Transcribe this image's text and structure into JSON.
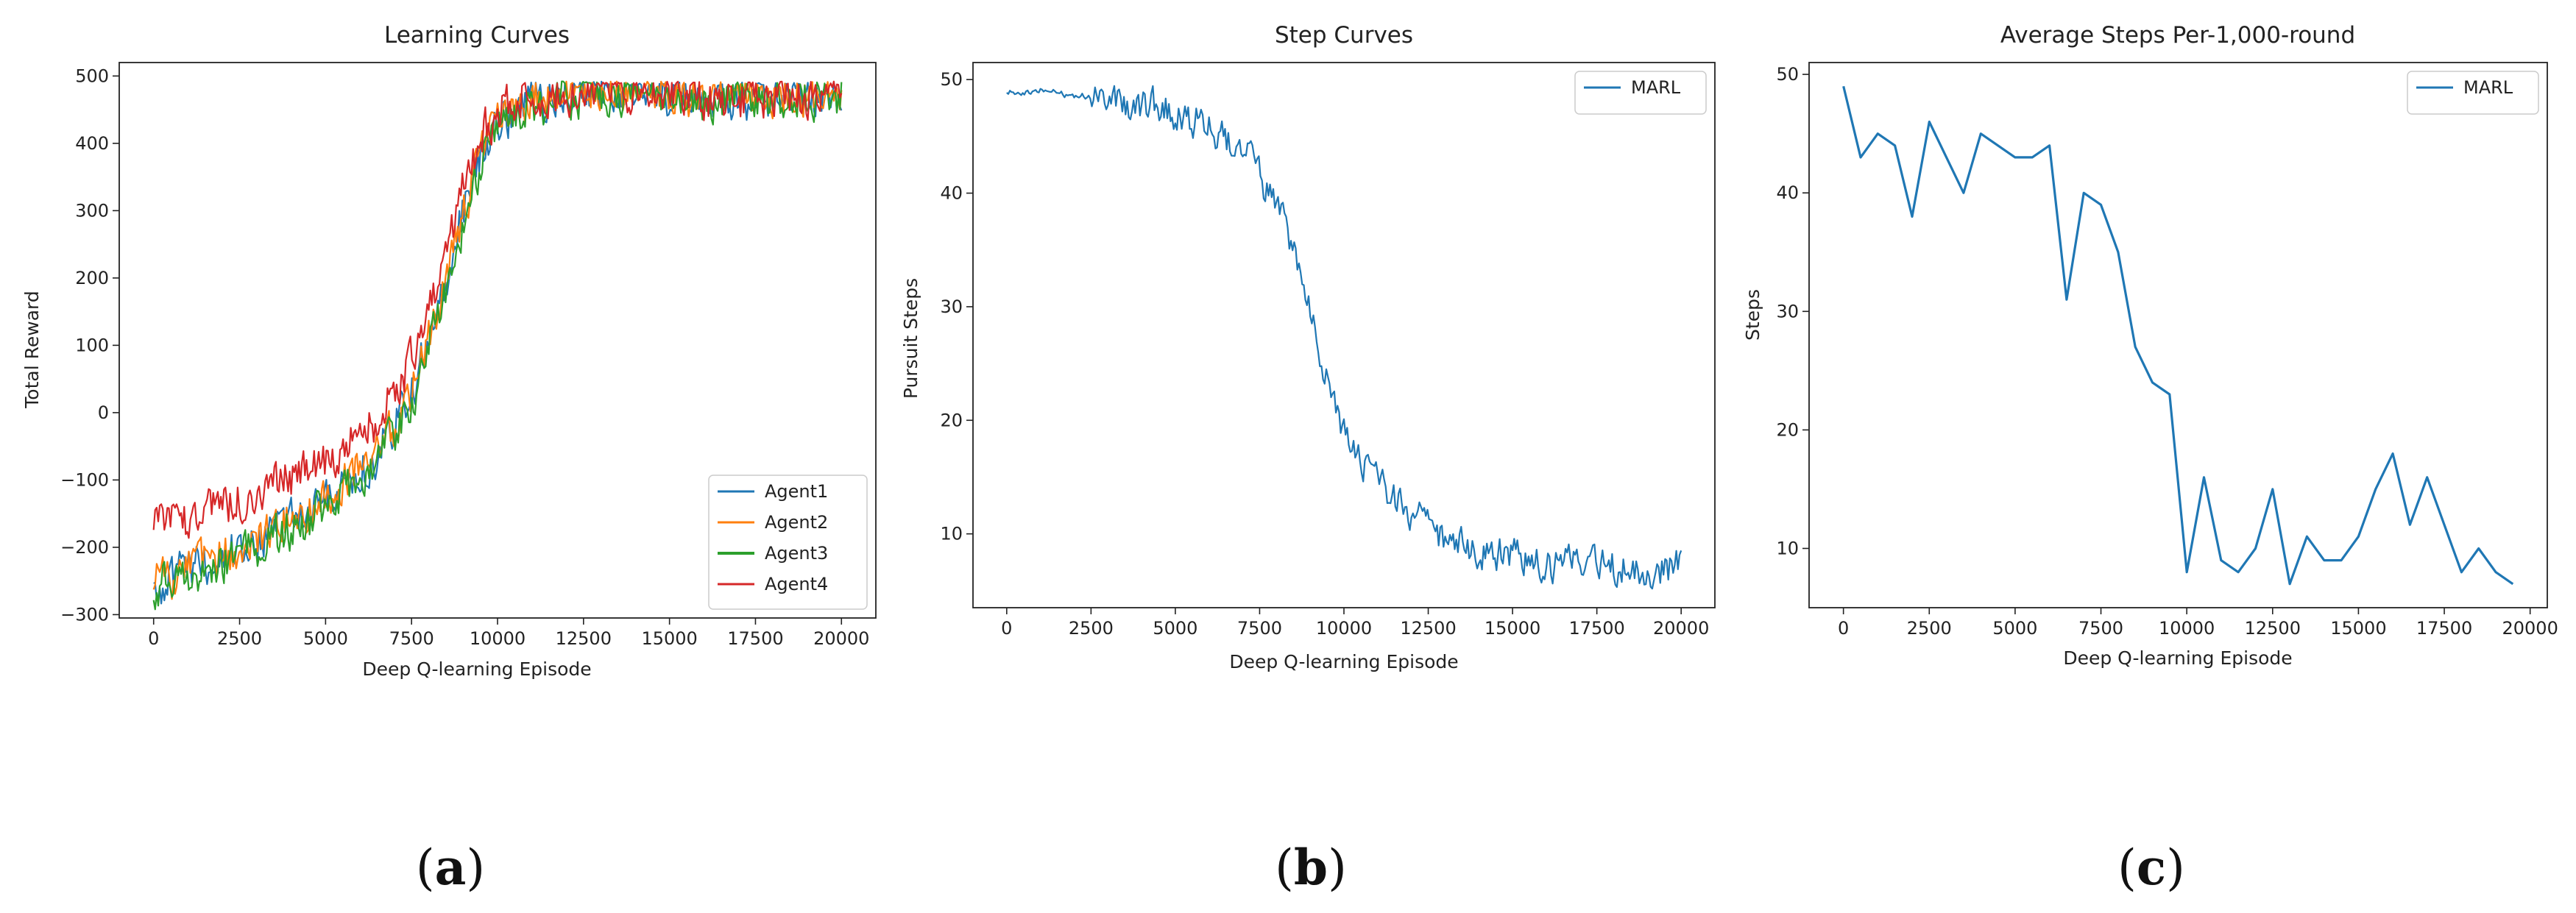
{
  "colors": {
    "agent1": "#1f77b4",
    "agent2": "#ff7f0e",
    "agent3": "#2ca02c",
    "agent4": "#d62728",
    "marl": "#1f77b4"
  },
  "panel_labels": {
    "a": {
      "open": "(",
      "letter": "a",
      "close": ")"
    },
    "b": {
      "open": "(",
      "letter": "b",
      "close": ")"
    },
    "c": {
      "open": "(",
      "letter": "c",
      "close": ")"
    }
  },
  "chart_data": [
    {
      "type": "line",
      "title": "Learning Curves",
      "xlabel": "Deep Q-learning Episode",
      "ylabel": "Total Reward",
      "xlim": [
        -1000,
        21000
      ],
      "ylim": [
        -305,
        520
      ],
      "xticks": [
        0,
        2500,
        5000,
        7500,
        10000,
        12500,
        15000,
        17500,
        20000
      ],
      "yticks": [
        -300,
        -200,
        -100,
        0,
        100,
        200,
        300,
        400,
        500
      ],
      "ytick_labels": [
        "−300",
        "−200",
        "−100",
        "0",
        "100",
        "200",
        "300",
        "400",
        "500"
      ],
      "legend": "lower-right",
      "series": [
        {
          "name": "Agent1",
          "color": "#1f77b4",
          "x": [
            0,
            1000,
            2000,
            3000,
            4000,
            5000,
            6000,
            6500,
            7000,
            7500,
            8000,
            8500,
            9000,
            9500,
            10000,
            10500,
            11000,
            11500,
            12000,
            12500,
            13000,
            13500,
            14000,
            15000,
            16000,
            17000,
            18000,
            19000,
            20000
          ],
          "y": [
            -258,
            -235,
            -215,
            -190,
            -160,
            -130,
            -85,
            -60,
            -20,
            30,
            110,
            190,
            300,
            380,
            430,
            450,
            462,
            468,
            472,
            476,
            478,
            478,
            478,
            470,
            465,
            465,
            468,
            470,
            470
          ]
        },
        {
          "name": "Agent2",
          "color": "#ff7f0e",
          "x": [
            0,
            1000,
            2000,
            3000,
            4000,
            5000,
            6000,
            6500,
            7000,
            7500,
            8000,
            8500,
            9000,
            9500,
            10000,
            10500,
            11000,
            11500,
            12000,
            12500,
            13000,
            13500,
            14000,
            15000,
            16000,
            17000,
            18000,
            19000,
            20000
          ],
          "y": [
            -255,
            -232,
            -212,
            -188,
            -158,
            -128,
            -82,
            -58,
            -18,
            32,
            112,
            192,
            302,
            382,
            432,
            452,
            463,
            469,
            473,
            476,
            478,
            478,
            478,
            471,
            466,
            466,
            469,
            471,
            471
          ]
        },
        {
          "name": "Agent3",
          "color": "#2ca02c",
          "x": [
            0,
            1000,
            2000,
            3000,
            4000,
            5000,
            6000,
            6500,
            7000,
            7500,
            8000,
            8500,
            9000,
            9500,
            10000,
            10500,
            11000,
            11500,
            12000,
            12500,
            13000,
            13500,
            14000,
            15000,
            16000,
            17000,
            18000,
            19000,
            20000
          ],
          "y": [
            -262,
            -240,
            -222,
            -200,
            -172,
            -145,
            -100,
            -75,
            -35,
            15,
            95,
            175,
            285,
            365,
            420,
            442,
            455,
            462,
            468,
            472,
            475,
            476,
            476,
            466,
            462,
            462,
            466,
            468,
            468
          ]
        },
        {
          "name": "Agent4",
          "color": "#d62728",
          "x": [
            0,
            1000,
            2000,
            3000,
            4000,
            5000,
            6000,
            6500,
            7000,
            7500,
            8000,
            8500,
            9000,
            9500,
            10000,
            10500,
            11000,
            11500,
            12000,
            12500,
            13000,
            13500,
            14000,
            15000,
            16000,
            17000,
            18000,
            19000,
            20000
          ],
          "y": [
            -172,
            -158,
            -142,
            -122,
            -98,
            -70,
            -35,
            -10,
            30,
            80,
            150,
            230,
            330,
            405,
            450,
            462,
            470,
            474,
            476,
            478,
            480,
            480,
            478,
            472,
            468,
            468,
            470,
            472,
            472
          ]
        }
      ]
    },
    {
      "type": "line",
      "title": "Step Curves",
      "xlabel": "Deep Q-learning Episode",
      "ylabel": "Pursuit Steps",
      "xlim": [
        -1000,
        21000
      ],
      "ylim": [
        3.5,
        51.5
      ],
      "xticks": [
        0,
        2500,
        5000,
        7500,
        10000,
        12500,
        15000,
        17500,
        20000
      ],
      "yticks": [
        10,
        20,
        30,
        40,
        50
      ],
      "legend": "top-right",
      "series": [
        {
          "name": "MARL",
          "color": "#1f77b4",
          "x": [
            0,
            500,
            1000,
            1500,
            2000,
            2500,
            3000,
            3500,
            4000,
            4500,
            5000,
            5500,
            6000,
            6500,
            7000,
            7500,
            8000,
            8500,
            9000,
            9500,
            10000,
            10500,
            11000,
            11500,
            12000,
            12500,
            13000,
            13500,
            14000,
            15000,
            16000,
            17000,
            18000,
            19000,
            20000
          ],
          "y": [
            49,
            49,
            49,
            48.8,
            48.6,
            48.5,
            48.3,
            48,
            47.8,
            47.5,
            47,
            46.5,
            46,
            45,
            43.5,
            41.5,
            38.5,
            35,
            30,
            24,
            19,
            16.5,
            14.5,
            12.8,
            11.5,
            10.5,
            9.5,
            9,
            8.5,
            8,
            7.5,
            7.5,
            7,
            7,
            7
          ]
        }
      ]
    },
    {
      "type": "line",
      "title": "Average Steps Per-1,000-round",
      "xlabel": "Deep Q-learning Episode",
      "ylabel": "Steps",
      "xlim": [
        -1000,
        20500
      ],
      "ylim": [
        5,
        51
      ],
      "xticks": [
        0,
        2500,
        5000,
        7500,
        10000,
        12500,
        15000,
        17500,
        20000
      ],
      "yticks": [
        10,
        20,
        30,
        40,
        50
      ],
      "legend": "top-right",
      "series": [
        {
          "name": "MARL",
          "color": "#1f77b4",
          "x": [
            0,
            500,
            1000,
            1500,
            2000,
            2500,
            3000,
            3500,
            4000,
            4500,
            5000,
            5500,
            6000,
            6500,
            7000,
            7500,
            8000,
            8500,
            9000,
            9500,
            10000,
            10500,
            11000,
            11500,
            12000,
            12500,
            13000,
            13500,
            14000,
            14500,
            15000,
            15500,
            16000,
            16500,
            17000,
            17500,
            18000,
            18500,
            19000,
            19500
          ],
          "y": [
            49,
            43,
            45,
            44,
            38,
            46,
            43,
            40,
            45,
            44,
            43,
            43,
            44,
            31,
            40,
            39,
            35,
            27,
            24,
            23,
            8,
            16,
            9,
            8,
            10,
            15,
            7,
            11,
            9,
            9,
            11,
            15,
            18,
            12,
            16,
            12,
            8,
            10,
            8,
            7
          ]
        }
      ]
    }
  ]
}
